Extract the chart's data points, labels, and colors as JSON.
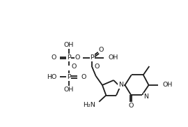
{
  "bg": "#ffffff",
  "lc": "#1a1a1a",
  "lw": 1.3,
  "fs": 6.8,
  "figsize": [
    2.7,
    1.82
  ],
  "dpi": 100,
  "xlim": [
    0,
    270
  ],
  "ylim": [
    0,
    182
  ]
}
